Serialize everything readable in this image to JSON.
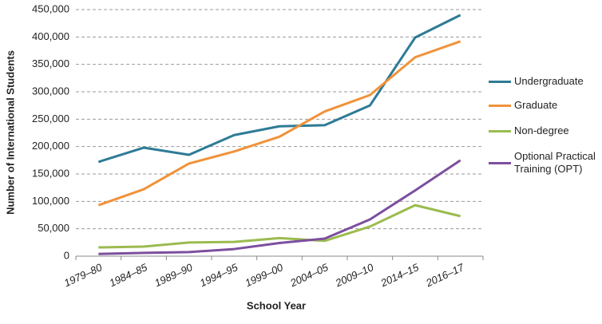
{
  "chart_data": {
    "type": "line",
    "x_label": "School Year",
    "y_label": "Number of International Students",
    "categories": [
      "1979–80",
      "1984–85",
      "1989–90",
      "1994–95",
      "1999–00",
      "2004–05",
      "2009–10",
      "2014–15",
      "2016–17"
    ],
    "series": [
      {
        "name": "Undergraduate",
        "color": "#2e7b96",
        "values": [
          172000,
          198000,
          185000,
          221000,
          237000,
          239000,
          275000,
          399000,
          440000
        ]
      },
      {
        "name": "Graduate",
        "color": "#f0923a",
        "values": [
          93000,
          122000,
          169000,
          191000,
          218000,
          264000,
          294000,
          363000,
          392000
        ]
      },
      {
        "name": "Non-degree",
        "color": "#9bbb4f",
        "values": [
          16000,
          17500,
          25000,
          26000,
          33000,
          28000,
          54000,
          93000,
          73000
        ]
      },
      {
        "name": "Optional Practical Training (OPT)",
        "color": "#7c4f9e",
        "values": [
          4000,
          6000,
          7500,
          13000,
          24000,
          32000,
          67000,
          120000,
          175000
        ]
      }
    ],
    "ylim": [
      0,
      450000
    ],
    "yticks": [
      0,
      {
        "value": 50000,
        "label": "50,000"
      },
      {
        "value": 100000,
        "label": "100,000"
      },
      {
        "value": 150000,
        "label": "150,000"
      },
      {
        "value": 200000,
        "label": "200,000"
      },
      {
        "value": 250000,
        "label": "250,000"
      },
      {
        "value": 300000,
        "label": "300,000"
      },
      {
        "value": 350000,
        "label": "350,000"
      },
      {
        "value": 400000,
        "label": "400,000"
      },
      {
        "value": 450000,
        "label": "450,000"
      }
    ],
    "grid": true
  }
}
